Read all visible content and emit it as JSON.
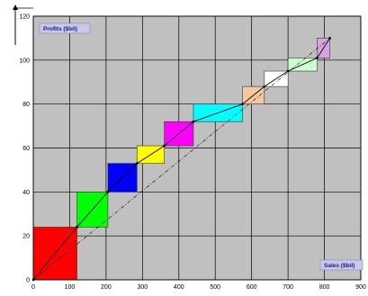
{
  "chart_data": {
    "type": "bar",
    "title": "",
    "xlabel": "Sales ($bil)",
    "ylabel": "Profits ($bil)",
    "xlim": [
      0,
      900
    ],
    "ylim": [
      0,
      120
    ],
    "xticks": [
      0,
      100,
      200,
      300,
      400,
      500,
      600,
      700,
      800,
      900
    ],
    "yticks": [
      0,
      20,
      40,
      60,
      80,
      100,
      120
    ],
    "grid": true,
    "legend": "none",
    "plot_background": "#c0c0c0",
    "bars": [
      {
        "x0": 0,
        "x1": 120,
        "y0": 0,
        "y1": 24,
        "color": "#ff0000"
      },
      {
        "x0": 120,
        "x1": 205,
        "y0": 24,
        "y1": 40,
        "color": "#00ff00"
      },
      {
        "x0": 205,
        "x1": 285,
        "y0": 40,
        "y1": 53,
        "color": "#0000ff"
      },
      {
        "x0": 285,
        "x1": 360,
        "y0": 53,
        "y1": 61,
        "color": "#ffff00"
      },
      {
        "x0": 360,
        "x1": 440,
        "y0": 61,
        "y1": 72,
        "color": "#ff00ff"
      },
      {
        "x0": 440,
        "x1": 575,
        "y0": 72,
        "y1": 80,
        "color": "#00ffff"
      },
      {
        "x0": 575,
        "x1": 635,
        "y0": 80,
        "y1": 88,
        "color": "#f5c8a0"
      },
      {
        "x0": 635,
        "x1": 700,
        "y0": 88,
        "y1": 95,
        "color": "#ffffff"
      },
      {
        "x0": 700,
        "x1": 780,
        "y0": 95,
        "y1": 101,
        "color": "#ccffcc"
      },
      {
        "x0": 780,
        "x1": 815,
        "y0": 101,
        "y1": 110,
        "color": "#d9a3e8"
      }
    ],
    "curve_points": [
      [
        0,
        0
      ],
      [
        120,
        24
      ],
      [
        205,
        40
      ],
      [
        285,
        53
      ],
      [
        360,
        61
      ],
      [
        440,
        72
      ],
      [
        575,
        80
      ],
      [
        635,
        88
      ],
      [
        700,
        95
      ],
      [
        780,
        101
      ],
      [
        815,
        110
      ]
    ],
    "diagonal": [
      [
        0,
        0
      ],
      [
        815,
        110
      ]
    ]
  }
}
